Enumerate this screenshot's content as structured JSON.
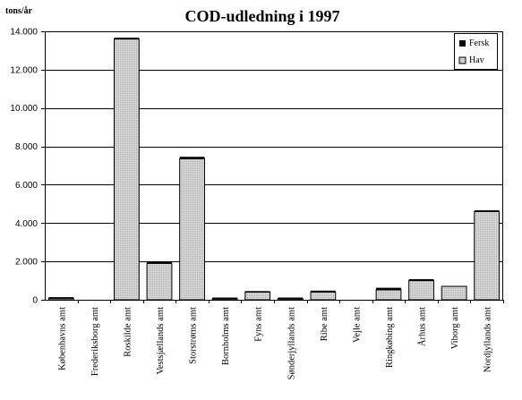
{
  "chart_data": {
    "type": "bar",
    "title": "COD-udledning i 1997",
    "ylabel": "tons/år",
    "xlabel": "",
    "ylim": [
      0,
      14000
    ],
    "yticks": [
      0,
      2000,
      4000,
      6000,
      8000,
      10000,
      12000,
      14000
    ],
    "ytick_labels": [
      "0",
      "2.000",
      "4.000",
      "6.000",
      "8.000",
      "10.000",
      "12.000",
      "14.000"
    ],
    "stacked": true,
    "grid": "horizontal",
    "legend_position": "top-right",
    "categories": [
      "Københavns amt",
      "Frederiksborg amt",
      "Roskilde amt",
      "Vestsjællands amt",
      "Storstrøms amt",
      "Bornholms amt",
      "Fyns amt",
      "Sønderjyllands amt",
      "Ribe amt",
      "Vejle amt",
      "Ringkøbing amt",
      "Århus amt",
      "Viborg amt",
      "Nordjyllands amt"
    ],
    "series": [
      {
        "name": "Hav",
        "color": "#c8c8c8",
        "values": [
          80,
          0,
          13600,
          1900,
          7350,
          60,
          400,
          60,
          400,
          0,
          520,
          1000,
          700,
          4600
        ]
      },
      {
        "name": "Fersk",
        "color": "#000000",
        "values": [
          10,
          0,
          20,
          20,
          60,
          10,
          5,
          10,
          30,
          0,
          60,
          30,
          0,
          20
        ]
      }
    ]
  }
}
